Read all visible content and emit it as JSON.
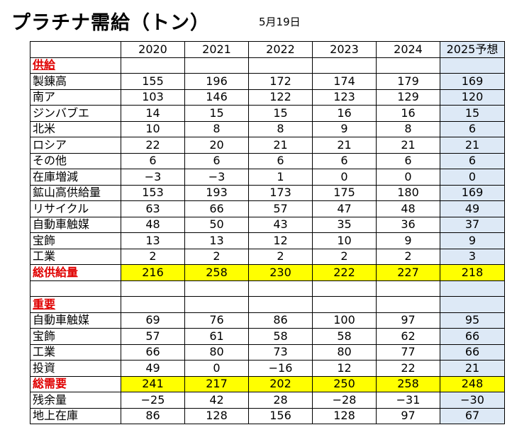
{
  "header": {
    "title": "プラチナ需給（トン）",
    "date": "5月19日"
  },
  "table": {
    "columns": [
      "2020",
      "2021",
      "2022",
      "2023",
      "2024",
      "2025予想"
    ],
    "sections": [
      {
        "heading": "供給",
        "rows": [
          {
            "label": "製錬高",
            "values": [
              "155",
              "196",
              "172",
              "174",
              "179",
              "169"
            ]
          },
          {
            "label": "南ア",
            "values": [
              "103",
              "146",
              "122",
              "123",
              "129",
              "120"
            ]
          },
          {
            "label": "ジンバブエ",
            "values": [
              "14",
              "15",
              "15",
              "16",
              "16",
              "15"
            ]
          },
          {
            "label": "北米",
            "values": [
              "10",
              "8",
              "8",
              "9",
              "8",
              "6"
            ]
          },
          {
            "label": "ロシア",
            "values": [
              "22",
              "20",
              "21",
              "21",
              "21",
              "21"
            ]
          },
          {
            "label": "その他",
            "values": [
              "6",
              "6",
              "6",
              "6",
              "6",
              "6"
            ]
          },
          {
            "label": "在庫増減",
            "values": [
              "−3",
              "−3",
              "1",
              "0",
              "0",
              "0"
            ]
          },
          {
            "label": "鉱山高供給量",
            "values": [
              "153",
              "193",
              "173",
              "175",
              "180",
              "169"
            ]
          },
          {
            "label": "リサイクル",
            "values": [
              "63",
              "66",
              "57",
              "47",
              "48",
              "49"
            ]
          },
          {
            "label": "自動車触媒",
            "values": [
              "48",
              "50",
              "43",
              "35",
              "36",
              "37"
            ]
          },
          {
            "label": "宝飾",
            "values": [
              "13",
              "13",
              "12",
              "10",
              "9",
              "9"
            ]
          },
          {
            "label": "工業",
            "values": [
              "2",
              "2",
              "2",
              "2",
              "2",
              "3"
            ]
          },
          {
            "label": "総供給量",
            "values": [
              "216",
              "258",
              "230",
              "222",
              "227",
              "218"
            ],
            "highlight": true
          }
        ]
      },
      {
        "heading": "重要",
        "rows": [
          {
            "label": "自動車触媒",
            "values": [
              "69",
              "76",
              "86",
              "100",
              "97",
              "95"
            ]
          },
          {
            "label": "宝飾",
            "values": [
              "57",
              "61",
              "58",
              "58",
              "62",
              "66"
            ]
          },
          {
            "label": "工業",
            "values": [
              "66",
              "80",
              "73",
              "80",
              "77",
              "66"
            ]
          },
          {
            "label": "投資",
            "values": [
              "49",
              "0",
              "−16",
              "12",
              "22",
              "21"
            ]
          },
          {
            "label": "総需要",
            "values": [
              "241",
              "217",
              "202",
              "250",
              "258",
              "248"
            ],
            "highlight": true
          },
          {
            "label": "残余量",
            "values": [
              "−25",
              "42",
              "28",
              "−28",
              "−31",
              "−30"
            ]
          },
          {
            "label": "地上在庫",
            "values": [
              "86",
              "128",
              "156",
              "128",
              "97",
              "67"
            ]
          }
        ]
      }
    ]
  }
}
